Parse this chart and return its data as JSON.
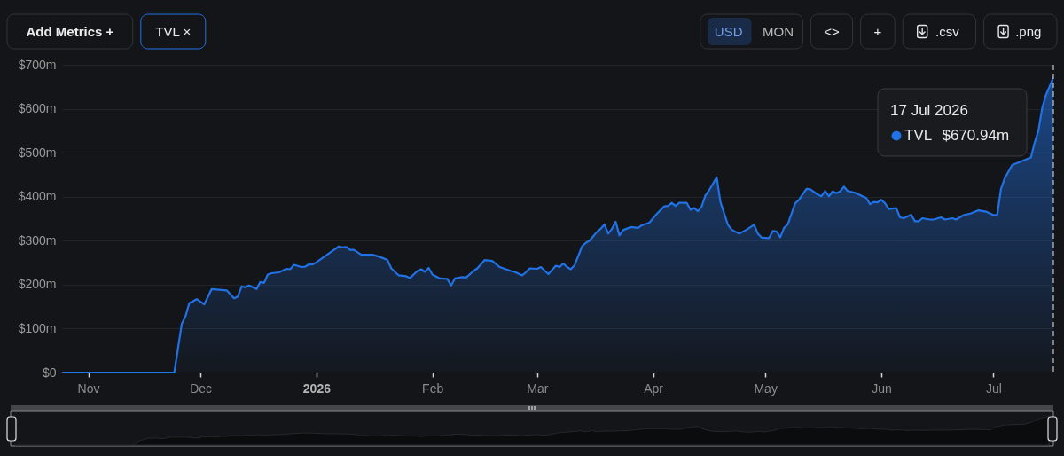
{
  "chart_data": {
    "type": "area",
    "x": [
      "2025-10-25",
      "2025-11-24",
      "2025-11-26",
      "2025-11-27",
      "2025-11-28",
      "2025-11-30",
      "2025-12-02",
      "2025-12-04",
      "2025-12-08",
      "2025-12-10",
      "2025-12-11",
      "2025-12-12",
      "2025-12-13",
      "2025-12-14",
      "2025-12-16",
      "2025-12-17",
      "2025-12-18",
      "2025-12-19",
      "2025-12-20",
      "2025-12-22",
      "2025-12-24",
      "2025-12-25",
      "2025-12-26",
      "2025-12-28",
      "2025-12-29",
      "2025-12-30",
      "2025-12-31",
      "2026-01-01",
      "2026-01-03",
      "2026-01-05",
      "2026-01-07",
      "2026-01-08",
      "2026-01-09",
      "2026-01-10",
      "2026-01-11",
      "2026-01-13",
      "2026-01-16",
      "2026-01-18",
      "2026-01-20",
      "2026-01-21",
      "2026-01-23",
      "2026-01-25",
      "2026-01-26",
      "2026-01-28",
      "2026-01-29",
      "2026-01-30",
      "2026-01-31",
      "2026-02-01",
      "2026-02-03",
      "2026-02-05",
      "2026-02-06",
      "2026-02-07",
      "2026-02-09",
      "2026-02-10",
      "2026-02-12",
      "2026-02-13",
      "2026-02-15",
      "2026-02-17",
      "2026-02-19",
      "2026-02-20",
      "2026-02-22",
      "2026-02-23",
      "2026-02-25",
      "2026-02-26",
      "2026-02-27",
      "2026-03-01",
      "2026-03-02",
      "2026-03-04",
      "2026-03-06",
      "2026-03-07",
      "2026-03-08",
      "2026-03-09",
      "2026-03-10",
      "2026-03-11",
      "2026-03-13",
      "2026-03-14",
      "2026-03-15",
      "2026-03-17",
      "2026-03-18",
      "2026-03-19",
      "2026-03-20",
      "2026-03-21",
      "2026-03-22",
      "2026-03-23",
      "2026-03-24",
      "2026-03-26",
      "2026-03-28",
      "2026-03-29",
      "2026-03-31",
      "2026-04-02",
      "2026-04-04",
      "2026-04-05",
      "2026-04-06",
      "2026-04-07",
      "2026-04-08",
      "2026-04-10",
      "2026-04-11",
      "2026-04-12",
      "2026-04-13",
      "2026-04-14",
      "2026-04-15",
      "2026-04-16",
      "2026-04-18",
      "2026-04-19",
      "2026-04-21",
      "2026-04-22",
      "2026-04-24",
      "2026-04-26",
      "2026-04-28",
      "2026-04-29",
      "2026-04-30",
      "2026-05-02",
      "2026-05-03",
      "2026-05-04",
      "2026-05-05",
      "2026-05-06",
      "2026-05-07",
      "2026-05-09",
      "2026-05-10",
      "2026-05-12",
      "2026-05-13",
      "2026-05-15",
      "2026-05-16",
      "2026-05-17",
      "2026-05-18",
      "2026-05-19",
      "2026-05-20",
      "2026-05-21",
      "2026-05-22",
      "2026-05-23",
      "2026-05-25",
      "2026-05-27",
      "2026-05-28",
      "2026-05-29",
      "2026-05-30",
      "2026-05-31",
      "2026-06-01",
      "2026-06-02",
      "2026-06-03",
      "2026-06-05",
      "2026-06-06",
      "2026-06-07",
      "2026-06-09",
      "2026-06-10",
      "2026-06-11",
      "2026-06-12",
      "2026-06-14",
      "2026-06-15",
      "2026-06-17",
      "2026-06-18",
      "2026-06-20",
      "2026-06-21",
      "2026-06-23",
      "2026-06-25",
      "2026-06-27",
      "2026-06-29",
      "2026-06-30",
      "2026-07-01",
      "2026-07-02",
      "2026-07-03",
      "2026-07-04",
      "2026-07-06",
      "2026-07-11",
      "2026-07-12",
      "2026-07-13",
      "2026-07-14",
      "2026-07-15",
      "2026-07-17"
    ],
    "series": [
      {
        "name": "TVL",
        "color": "#2172e5",
        "values": [
          0,
          0,
          111,
          128,
          158,
          167,
          155,
          190,
          187,
          169,
          173,
          196,
          194,
          198,
          190,
          206,
          204,
          223,
          226,
          228,
          236,
          235,
          245,
          240,
          241,
          246,
          246,
          251,
          263,
          275,
          287,
          285,
          286,
          279,
          279,
          268,
          268,
          263,
          256,
          237,
          221,
          219,
          215,
          231,
          235,
          229,
          238,
          223,
          214,
          213,
          198,
          214,
          217,
          216,
          231,
          237,
          256,
          254,
          240,
          237,
          231,
          229,
          221,
          228,
          237,
          236,
          240,
          224,
          243,
          240,
          248,
          240,
          235,
          244,
          287,
          295,
          300,
          320,
          327,
          337,
          316,
          327,
          343,
          312,
          324,
          331,
          329,
          335,
          341,
          361,
          378,
          379,
          386,
          379,
          386,
          386,
          370,
          374,
          367,
          378,
          403,
          415,
          444,
          388,
          336,
          325,
          316,
          325,
          336,
          316,
          307,
          306,
          322,
          321,
          308,
          329,
          337,
          385,
          393,
          418,
          417,
          405,
          401,
          413,
          401,
          412,
          408,
          412,
          423,
          413,
          409,
          401,
          397,
          383,
          388,
          387,
          393,
          385,
          372,
          374,
          353,
          351,
          359,
          344,
          344,
          351,
          348,
          348,
          353,
          348,
          351,
          348,
          358,
          362,
          369,
          366,
          362,
          358,
          359,
          418,
          442,
          472,
          489,
          523,
          550,
          601,
          631,
          670.94
        ]
      }
    ],
    "xlim": [
      "2025-10-25",
      "2026-07-17"
    ],
    "xticks": [
      {
        "value": "2025-11-01",
        "label": "Nov"
      },
      {
        "value": "2025-12-01",
        "label": "Dec"
      },
      {
        "value": "2026-01-01",
        "label": "2026"
      },
      {
        "value": "2026-02-01",
        "label": "Feb"
      },
      {
        "value": "2026-03-01",
        "label": "Mar"
      },
      {
        "value": "2026-04-01",
        "label": "Apr"
      },
      {
        "value": "2026-05-01",
        "label": "May"
      },
      {
        "value": "2026-06-01",
        "label": "Jun"
      },
      {
        "value": "2026-07-01",
        "label": "Jul"
      }
    ],
    "ylim": [
      0,
      700
    ],
    "yticks": [
      {
        "value": 0,
        "label": "$0"
      },
      {
        "value": 100,
        "label": "$100m"
      },
      {
        "value": 200,
        "label": "$200m"
      },
      {
        "value": 300,
        "label": "$300m"
      },
      {
        "value": 400,
        "label": "$400m"
      },
      {
        "value": 500,
        "label": "$500m"
      },
      {
        "value": 600,
        "label": "$600m"
      },
      {
        "value": 700,
        "label": "$700m"
      }
    ],
    "grid": "y",
    "ref_lines": [
      {
        "axis": "x",
        "value": "2026-07-17",
        "line_style": "dashed",
        "color": "#c8c8c8"
      }
    ],
    "annotations": [
      "Add Metrics +",
      "TVL ×",
      "USD",
      "MON",
      "<>",
      "+",
      ".csv",
      ".png",
      "17 Jul 2026",
      "$670.94m"
    ]
  }
}
